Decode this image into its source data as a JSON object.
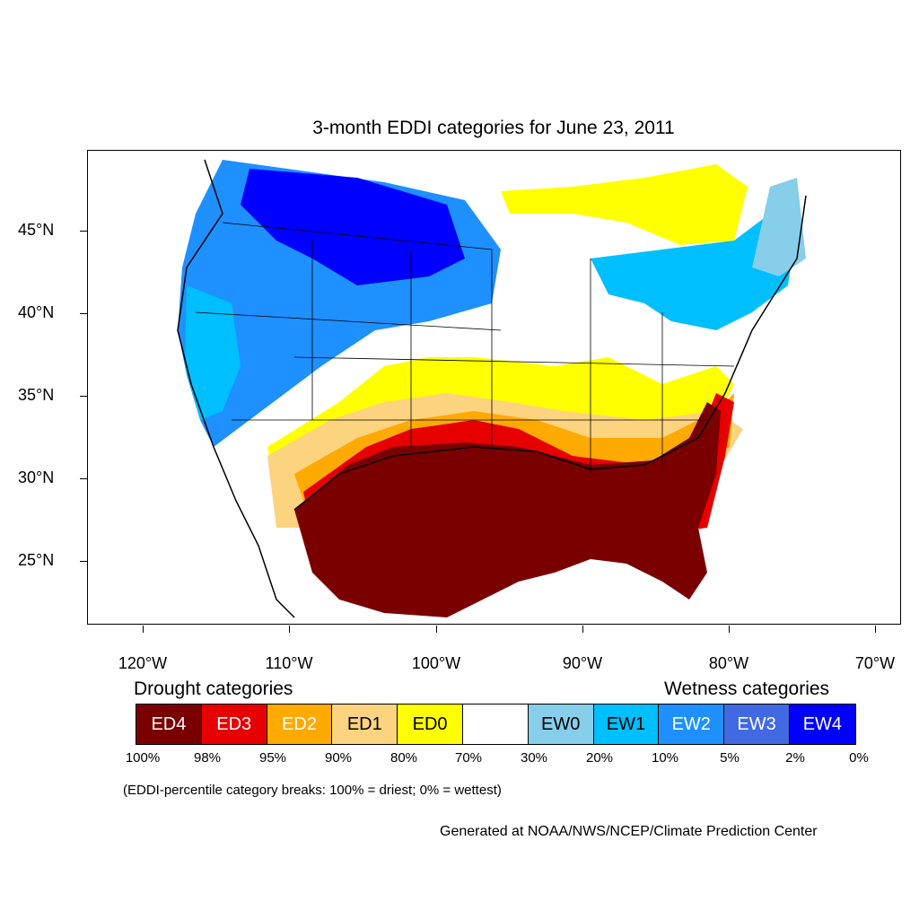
{
  "title": "3-month EDDI categories for June 23, 2011",
  "lat_labels": [
    "45°N",
    "40°N",
    "35°N",
    "30°N",
    "25°N"
  ],
  "lon_labels": [
    "120°W",
    "110°W",
    "100°W",
    "90°W",
    "80°W",
    "70°W"
  ],
  "legend": {
    "drought_heading": "Drought categories",
    "wetness_heading": "Wetness categories",
    "categories": [
      {
        "label": "ED4",
        "color": "#7a0000",
        "text_color": "#ffffff"
      },
      {
        "label": "ED3",
        "color": "#e60000",
        "text_color": "#ffffff"
      },
      {
        "label": "ED2",
        "color": "#ffaa00",
        "text_color": "#ffffff"
      },
      {
        "label": "ED1",
        "color": "#fcd37f",
        "text_color": "#000000"
      },
      {
        "label": "ED0",
        "color": "#ffff00",
        "text_color": "#000000"
      },
      {
        "label": "",
        "color": "#ffffff",
        "text_color": "#000000"
      },
      {
        "label": "EW0",
        "color": "#87ceeb",
        "text_color": "#000000"
      },
      {
        "label": "EW1",
        "color": "#00bfff",
        "text_color": "#000000"
      },
      {
        "label": "EW2",
        "color": "#1e90ff",
        "text_color": "#ffffff"
      },
      {
        "label": "EW3",
        "color": "#4169e1",
        "text_color": "#ffffff"
      },
      {
        "label": "EW4",
        "color": "#0000ff",
        "text_color": "#ffffff"
      }
    ],
    "percent_breaks": [
      "100%",
      "98%",
      "95%",
      "90%",
      "80%",
      "70%",
      "30%",
      "20%",
      "10%",
      "5%",
      "2%",
      "0%"
    ]
  },
  "note": "(EDDI-percentile category breaks: 100% = driest; 0% = wettest)",
  "credit": "Generated at NOAA/NWS/NCEP/Climate Prediction Center"
}
